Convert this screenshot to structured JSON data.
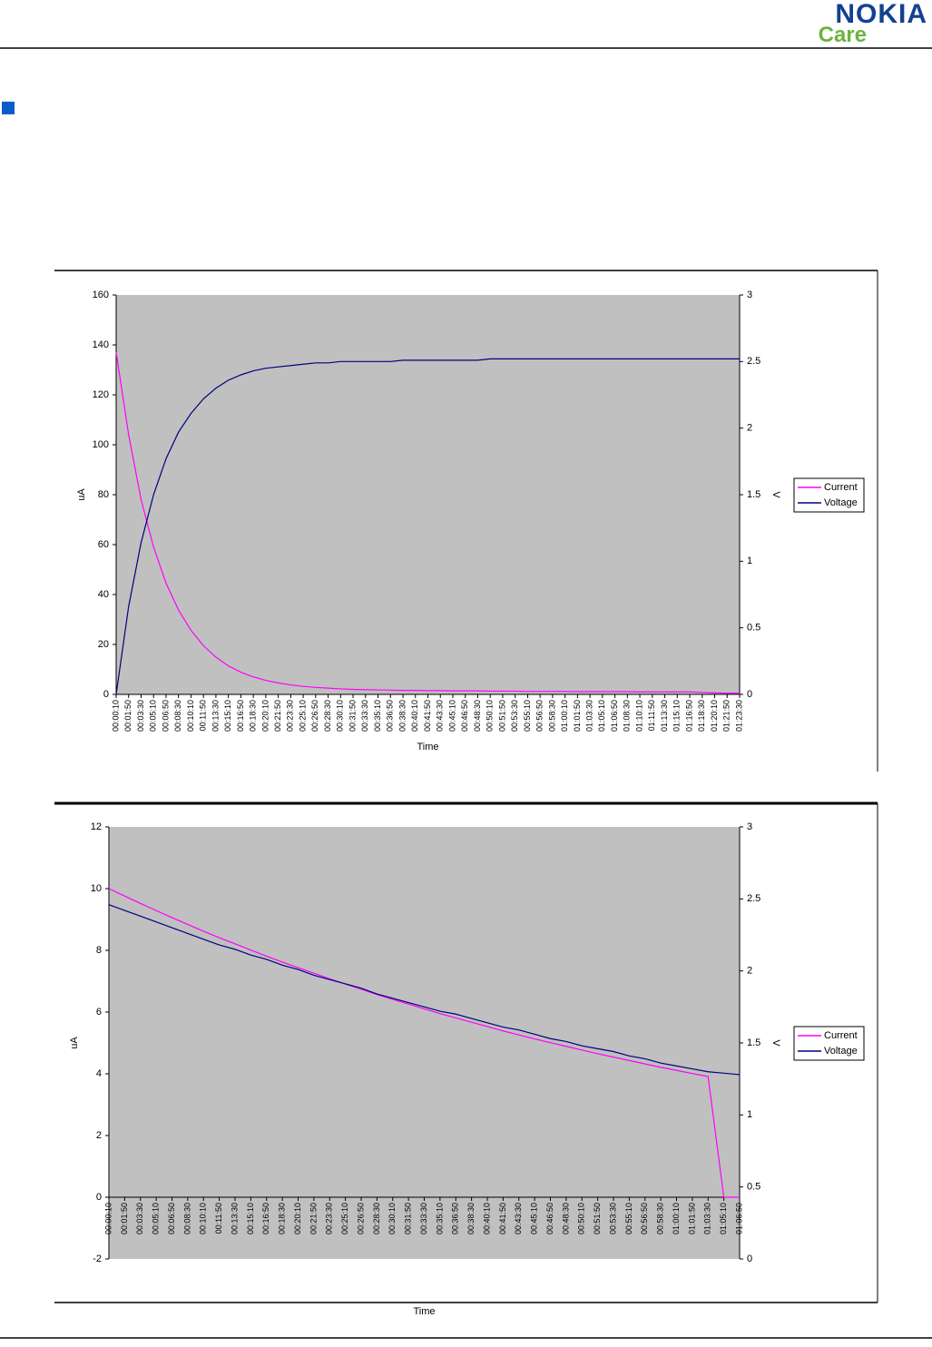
{
  "header": {
    "brand": "NOKIA",
    "sub": "Care"
  },
  "chart_data": [
    {
      "type": "line",
      "x_label": "Time",
      "y_label": "uA",
      "y2_label": "V",
      "categories": [
        "00:00:10",
        "00:01:50",
        "00:03:30",
        "00:05:10",
        "00:06:50",
        "00:08:30",
        "00:10:10",
        "00:11:50",
        "00:13:30",
        "00:15:10",
        "00:16:50",
        "00:18:30",
        "00:20:10",
        "00:21:50",
        "00:23:30",
        "00:25:10",
        "00:26:50",
        "00:28:30",
        "00:30:10",
        "00:31:50",
        "00:33:30",
        "00:35:10",
        "00:36:50",
        "00:38:30",
        "00:40:10",
        "00:41:50",
        "00:43:30",
        "00:45:10",
        "00:46:50",
        "00:48:30",
        "00:50:10",
        "00:51:50",
        "00:53:30",
        "00:55:10",
        "00:56:50",
        "00:58:30",
        "01:00:10",
        "01:01:50",
        "01:03:30",
        "01:05:10",
        "01:06:50",
        "01:08:30",
        "01:10:10",
        "01:11:50",
        "01:13:30",
        "01:15:10",
        "01:16:50",
        "01:18:30",
        "01:20:10",
        "01:21:50",
        "01:23:30"
      ],
      "series": [
        {
          "name": "Current",
          "color": "#ff00ff",
          "values": [
            137,
            104,
            78,
            59,
            44.6,
            33.8,
            25.7,
            19.5,
            14.9,
            11.4,
            8.9,
            7,
            5.6,
            4.6,
            3.8,
            3.2,
            2.8,
            2.5,
            2.2,
            2,
            1.9,
            1.8,
            1.7,
            1.6,
            1.6,
            1.5,
            1.5,
            1.4,
            1.4,
            1.4,
            1.3,
            1.3,
            1.3,
            1.2,
            1.2,
            1.2,
            1.2,
            1.1,
            1.1,
            1.1,
            1.1,
            1.1,
            1,
            1,
            1,
            1,
            1,
            0.8,
            0.6,
            0.5,
            0.5
          ]
        },
        {
          "name": "Voltage",
          "color": "#000080",
          "axis": "y2",
          "values": [
            0,
            0.66,
            1.14,
            1.5,
            1.77,
            1.97,
            2.11,
            2.22,
            2.3,
            2.36,
            2.4,
            2.43,
            2.45,
            2.46,
            2.47,
            2.48,
            2.49,
            2.49,
            2.5,
            2.5,
            2.5,
            2.5,
            2.5,
            2.51,
            2.51,
            2.51,
            2.51,
            2.51,
            2.51,
            2.51,
            2.52,
            2.52,
            2.52,
            2.52,
            2.52,
            2.52,
            2.52,
            2.52,
            2.52,
            2.52,
            2.52,
            2.52,
            2.52,
            2.52,
            2.52,
            2.52,
            2.52,
            2.52,
            2.52,
            2.52,
            2.52
          ]
        }
      ],
      "ylim": [
        0,
        160
      ],
      "yticks": [
        0,
        20,
        40,
        60,
        80,
        100,
        120,
        140,
        160
      ],
      "y2lim": [
        0,
        3
      ],
      "y2ticks": [
        0,
        0.5,
        1,
        1.5,
        2,
        2.5,
        3
      ],
      "legend": "right",
      "background": "#c0c0c0"
    },
    {
      "type": "line",
      "x_label": "Time",
      "y_label": "uA",
      "y2_label": "V",
      "categories": [
        "00:00:10",
        "00:01:50",
        "00:03:30",
        "00:05:10",
        "00:06:50",
        "00:08:30",
        "00:10:10",
        "00:11:50",
        "00:13:30",
        "00:15:10",
        "00:16:50",
        "00:18:30",
        "00:20:10",
        "00:21:50",
        "00:23:30",
        "00:25:10",
        "00:26:50",
        "00:28:30",
        "00:30:10",
        "00:31:50",
        "00:33:30",
        "00:35:10",
        "00:36:50",
        "00:38:30",
        "00:40:10",
        "00:41:50",
        "00:43:30",
        "00:45:10",
        "00:46:50",
        "00:48:30",
        "00:50:10",
        "00:51:50",
        "00:53:30",
        "00:55:10",
        "00:56:50",
        "00:58:30",
        "01:00:10",
        "01:01:50",
        "01:03:30",
        "01:05:10",
        "01:06:50"
      ],
      "series": [
        {
          "name": "Current",
          "color": "#ff00ff",
          "values": [
            10,
            9.76,
            9.52,
            9.29,
            9.06,
            8.84,
            8.62,
            8.41,
            8.21,
            8.01,
            7.81,
            7.62,
            7.44,
            7.26,
            7.08,
            6.91,
            6.74,
            6.57,
            6.41,
            6.26,
            6.1,
            5.95,
            5.81,
            5.67,
            5.53,
            5.39,
            5.26,
            5.13,
            5.01,
            4.89,
            4.77,
            4.65,
            4.54,
            4.43,
            4.32,
            4.21,
            4.11,
            4.01,
            3.91,
            0,
            0
          ]
        },
        {
          "name": "Voltage",
          "color": "#000080",
          "axis": "y2",
          "values": [
            2.46,
            2.42,
            2.38,
            2.34,
            2.3,
            2.26,
            2.22,
            2.18,
            2.15,
            2.11,
            2.08,
            2.04,
            2.01,
            1.97,
            1.94,
            1.91,
            1.88,
            1.84,
            1.81,
            1.78,
            1.75,
            1.72,
            1.7,
            1.67,
            1.64,
            1.61,
            1.59,
            1.56,
            1.53,
            1.51,
            1.48,
            1.46,
            1.44,
            1.41,
            1.39,
            1.36,
            1.34,
            1.32,
            1.3,
            1.29,
            1.28
          ]
        }
      ],
      "ylim": [
        -2,
        12
      ],
      "yticks": [
        -2,
        0,
        2,
        4,
        6,
        8,
        10,
        12
      ],
      "y2lim": [
        0,
        3
      ],
      "y2ticks": [
        0,
        0.5,
        1,
        1.5,
        2,
        2.5,
        3
      ],
      "legend": "right",
      "background": "#c0c0c0"
    }
  ]
}
